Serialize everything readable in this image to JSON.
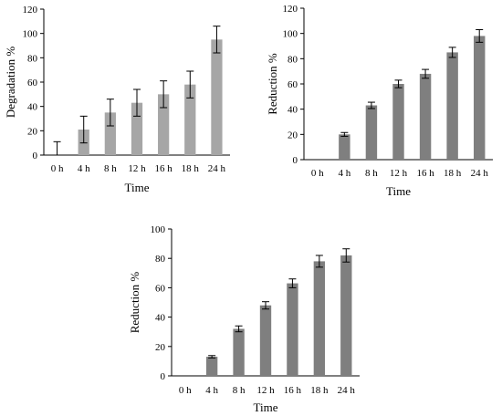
{
  "chart_data": [
    {
      "type": "bar",
      "categories": [
        "0 h",
        "4 h",
        "8 h",
        "12 h",
        "16 h",
        "18 h",
        "24 h"
      ],
      "values": [
        0,
        21,
        35,
        43,
        50,
        58,
        95
      ],
      "errors": [
        11,
        11,
        11,
        11,
        11,
        11,
        11
      ],
      "xlabel": "Time",
      "ylabel": "Degradation %",
      "ylim": [
        0,
        120
      ],
      "yticks": [
        0,
        20,
        40,
        60,
        80,
        100,
        120
      ],
      "bar_color": "#a6a6a6",
      "grid": false
    },
    {
      "type": "bar",
      "categories": [
        "0 h",
        "4 h",
        "8 h",
        "12 h",
        "16 h",
        "18 h",
        "24 h"
      ],
      "values": [
        0,
        20,
        43,
        60,
        68,
        85,
        98
      ],
      "errors": [
        0,
        1.5,
        2.5,
        3,
        3.5,
        4,
        5
      ],
      "xlabel": "Time",
      "ylabel": "Reduction %",
      "ylim": [
        0,
        120
      ],
      "yticks": [
        0,
        20,
        40,
        60,
        80,
        100,
        120
      ],
      "bar_color": "#7f7f7f",
      "grid": false
    },
    {
      "type": "bar",
      "categories": [
        "0 h",
        "4 h",
        "8 h",
        "12 h",
        "16 h",
        "18 h",
        "24 h"
      ],
      "values": [
        0,
        13,
        32,
        48,
        63,
        78,
        82
      ],
      "errors": [
        0,
        0.8,
        2,
        2.5,
        3,
        4,
        4.5
      ],
      "xlabel": "Time",
      "ylabel": "Reduction %",
      "ylim": [
        0,
        100
      ],
      "yticks": [
        0,
        20,
        40,
        60,
        80,
        100
      ],
      "bar_color": "#7f7f7f",
      "grid": false
    }
  ]
}
